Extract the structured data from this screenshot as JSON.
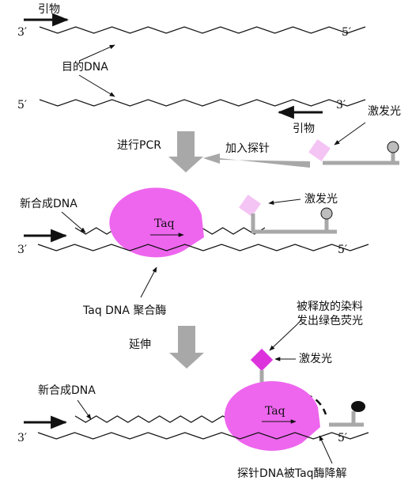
{
  "labels": {
    "primer_top": "引物",
    "end_3_a": "3′",
    "end_5_a": "5′",
    "target_dna": "目的DNA",
    "end_5_b": "5′",
    "end_3_b": "3′",
    "excite_light_1": "激发光",
    "primer_bottom": "引物",
    "run_pcr": "进行PCR",
    "add_probe": "加入探针",
    "new_dna_1": "新合成DNA",
    "excite_light_2": "激发光",
    "taq_1": "Taq",
    "end_3_c": "3′",
    "end_5_c": "5′",
    "taq_polymerase": "Taq DNA 聚合酶",
    "extend": "延伸",
    "released_dye_line1": "被释放的染料",
    "released_dye_line2": "发出绿色荧光",
    "excite_light_3": "激发光",
    "new_dna_2": "新合成DNA",
    "taq_2": "Taq",
    "end_3_d": "3′",
    "end_5_d": "5′",
    "probe_degraded": "探针DNA被Taq酶降解"
  },
  "colors": {
    "enzyme": "#ee66ee",
    "fluor_light": "#f4c4f4",
    "fluor_bright": "#dd33dd",
    "gray": "#a8a8a8",
    "quencher_gray": "#bdbdbd",
    "quencher_dark": "#111111"
  }
}
